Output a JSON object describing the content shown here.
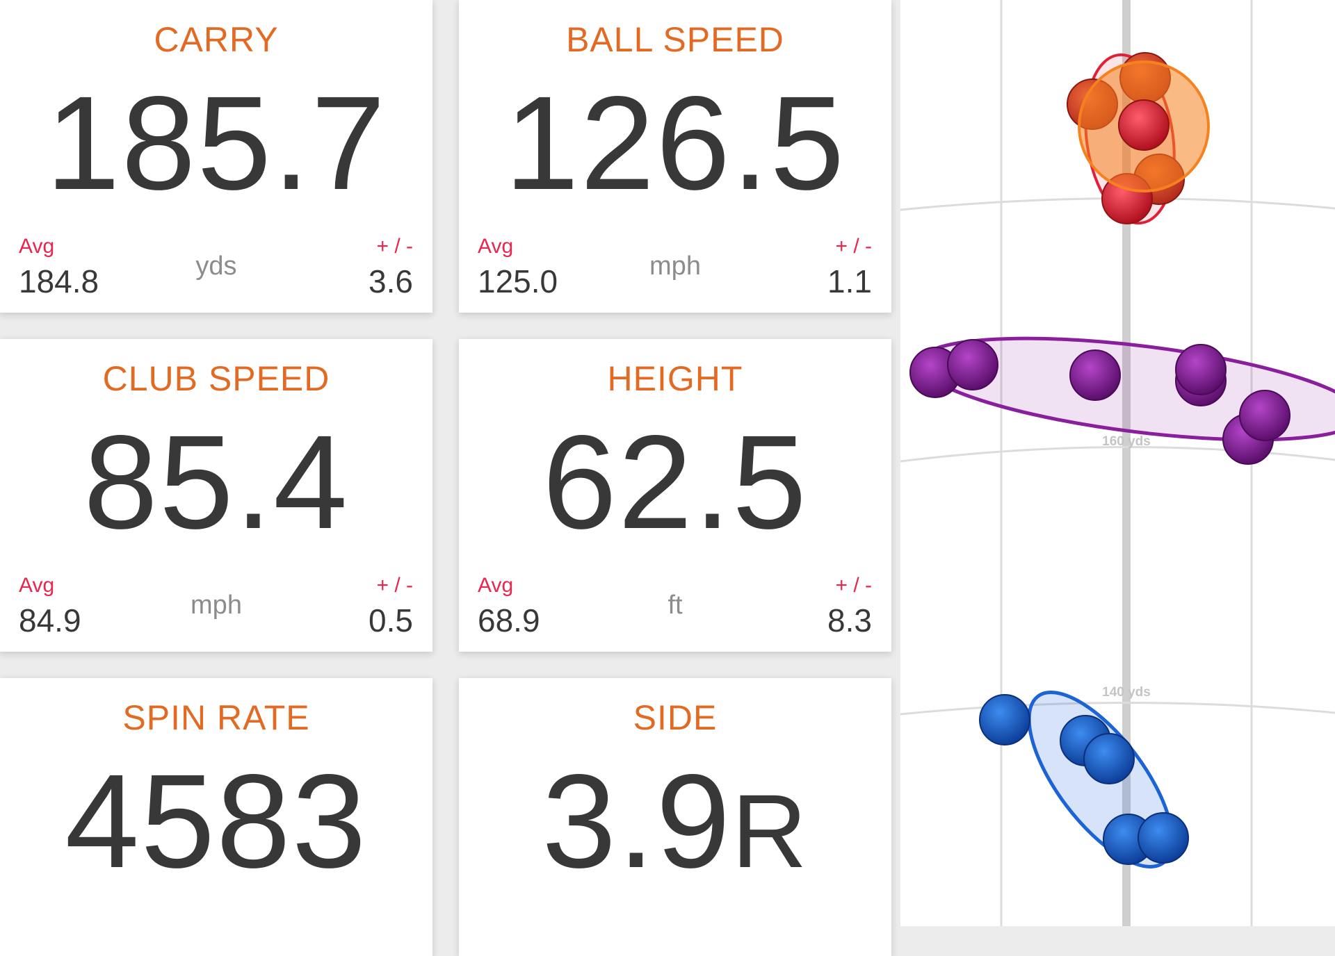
{
  "tiles": {
    "carry": {
      "title": "CARRY",
      "value": "185.7",
      "avg_label": "Avg",
      "avg": "184.8",
      "unit": "yds",
      "pm_label": "+ / -",
      "pm": "3.6"
    },
    "ball_speed": {
      "title": "BALL SPEED",
      "value": "126.5",
      "avg_label": "Avg",
      "avg": "125.0",
      "unit": "mph",
      "pm_label": "+ / -",
      "pm": "1.1"
    },
    "club_speed": {
      "title": "CLUB SPEED",
      "value": "85.4",
      "avg_label": "Avg",
      "avg": "84.9",
      "unit": "mph",
      "pm_label": "+ / -",
      "pm": "0.5"
    },
    "height": {
      "title": "HEIGHT",
      "value": "62.5",
      "avg_label": "Avg",
      "avg": "68.9",
      "unit": "ft",
      "pm_label": "+ / -",
      "pm": "8.3"
    },
    "spin_rate": {
      "title": "SPIN RATE",
      "value": "4583"
    },
    "side": {
      "title": "SIDE",
      "value": "3.9",
      "value_suffix": "R"
    }
  },
  "dispersion": {
    "distance_labels": [
      "160 yds",
      "140 yds"
    ],
    "colors": {
      "red": "#e21f36",
      "orange": "#f5811f",
      "purple": "#8a1f9e",
      "blue": "#1c63d6",
      "grid": "#dcdcdc",
      "center_line": "#cfcfcf"
    }
  }
}
